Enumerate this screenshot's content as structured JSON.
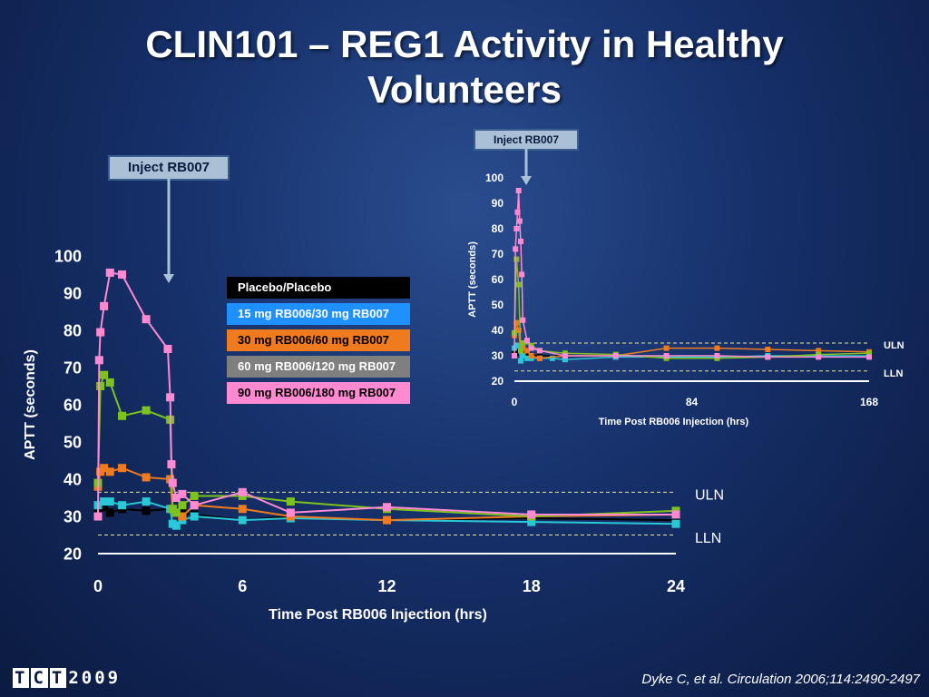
{
  "slide": {
    "title_line1": "CLIN101 – REG1 Activity in Healthy",
    "title_line2": "Volunteers",
    "citation": "Dyke C, et al. Circulation 2006;114:2490-2497",
    "logo_text": "TCT2009"
  },
  "colors": {
    "background": "#16306a",
    "placebo": "#000000",
    "dose15": "#1e90ff",
    "dose30": "#f07a1e",
    "dose60": "#7dc21e",
    "dose90": "#ff8ad2",
    "aptt_cyan": "#2ac7d6",
    "reference_line": "#e6e6a0"
  },
  "chart_data": [
    {
      "name": "main",
      "type": "line",
      "xlabel": "Time Post RB006 Injection (hrs)",
      "ylabel": "APTT (seconds)",
      "xlim": [
        0,
        24
      ],
      "ylim": [
        20,
        100
      ],
      "xticks": [
        "0",
        "6",
        "12",
        "18",
        "24"
      ],
      "yticks": [
        "20",
        "30",
        "40",
        "50",
        "60",
        "70",
        "80",
        "90",
        "100"
      ],
      "annotation": "Inject RB007",
      "inject_time": 3,
      "reference_lines": [
        {
          "label": "ULN",
          "y": 36.5
        },
        {
          "label": "LLN",
          "y": 25
        }
      ],
      "legend": [
        "Placebo/Placebo",
        "15 mg RB006/30 mg RB007",
        "30 mg RB006/60 mg RB007",
        "60 mg RB006/120 mg RB007",
        "90 mg RB006/180 mg RB007"
      ],
      "series": [
        {
          "name": "Placebo/Placebo",
          "color": "#000000",
          "x": [
            0,
            0.25,
            0.5,
            1,
            2,
            3,
            3.25,
            3.5,
            4,
            6,
            8,
            12,
            18,
            24
          ],
          "y": [
            32,
            32.5,
            31,
            32,
            31.5,
            32,
            31,
            31,
            30.5,
            29,
            30,
            29,
            29.5,
            29
          ]
        },
        {
          "name": "15 mg RB006/30 mg RB007",
          "color": "#2ac7d6",
          "x": [
            0,
            0.25,
            0.5,
            1,
            2,
            3,
            3.1,
            3.25,
            3.5,
            4,
            6,
            8,
            12,
            18,
            24
          ],
          "y": [
            33,
            34,
            34,
            33,
            34,
            32,
            28,
            27.5,
            29,
            30,
            29,
            29.5,
            29,
            28.5,
            28
          ]
        },
        {
          "name": "30 mg RB006/60 mg RB007",
          "color": "#f07a1e",
          "x": [
            0,
            0.1,
            0.25,
            0.5,
            1,
            2,
            3,
            3.1,
            3.25,
            3.5,
            4,
            6,
            8,
            12,
            18,
            24
          ],
          "y": [
            38,
            42,
            43,
            42,
            43,
            40.5,
            40,
            32,
            31,
            30,
            33,
            32,
            30,
            29,
            30,
            30.5
          ]
        },
        {
          "name": "60 mg RB006/120 mg RB007",
          "color": "#7dc21e",
          "x": [
            0,
            0.1,
            0.25,
            0.5,
            1,
            2,
            3,
            3.1,
            3.25,
            3.5,
            4,
            6,
            8,
            12,
            18,
            24
          ],
          "y": [
            39,
            65,
            68,
            66,
            57,
            58.5,
            56,
            32,
            31,
            33,
            35.5,
            35.5,
            34,
            32,
            30,
            31.5
          ]
        },
        {
          "name": "90 mg RB006/180 mg RB007",
          "color": "#ff8ad2",
          "x": [
            0,
            0.05,
            0.1,
            0.25,
            0.5,
            1,
            2,
            2.9,
            3,
            3.05,
            3.1,
            3.25,
            3.5,
            4,
            6,
            8,
            12,
            18,
            24
          ],
          "y": [
            30,
            72,
            79.5,
            86.5,
            95.5,
            95,
            83,
            75,
            62,
            44,
            39,
            35,
            36,
            33,
            36.5,
            31,
            32.5,
            30.5,
            30.5
          ]
        }
      ]
    },
    {
      "name": "inset",
      "type": "line",
      "xlabel": "Time Post RB006 Injection (hrs)",
      "ylabel": "APTT (seconds)",
      "xlim": [
        0,
        168
      ],
      "ylim": [
        20,
        100
      ],
      "xticks": [
        "0",
        "84",
        "168"
      ],
      "yticks": [
        "20",
        "30",
        "40",
        "50",
        "60",
        "70",
        "80",
        "90",
        "100"
      ],
      "annotation": "Inject RB007",
      "inject_time": 3,
      "reference_lines": [
        {
          "label": "ULN",
          "y": 35
        },
        {
          "label": "LLN",
          "y": 24
        }
      ],
      "series": [
        {
          "name": "Placebo/Placebo",
          "color": "#000000",
          "x": [
            0,
            1,
            2,
            3,
            4,
            6,
            8,
            12,
            24,
            48,
            72,
            96,
            120,
            144,
            168
          ],
          "y": [
            32,
            31,
            32,
            31,
            30,
            30,
            30,
            30,
            30,
            30,
            29,
            29.5,
            30,
            30,
            30
          ]
        },
        {
          "name": "15 mg RB006/30 mg RB007",
          "color": "#2ac7d6",
          "x": [
            0,
            1,
            2,
            3,
            4,
            6,
            8,
            12,
            18,
            24,
            48,
            72,
            96,
            120,
            144,
            168
          ],
          "y": [
            33,
            34,
            34,
            28,
            30,
            29,
            29,
            29,
            29,
            28.5,
            29.5,
            29.5,
            29.5,
            30,
            30,
            30
          ]
        },
        {
          "name": "30 mg RB006/60 mg RB007",
          "color": "#f07a1e",
          "x": [
            0,
            1,
            2,
            3,
            4,
            6,
            8,
            12,
            24,
            48,
            72,
            96,
            120,
            144,
            168
          ],
          "y": [
            38,
            43,
            40,
            32,
            33,
            32,
            30,
            29,
            30,
            30,
            33,
            33,
            32.5,
            32,
            31.5
          ]
        },
        {
          "name": "60 mg RB006/120 mg RB007",
          "color": "#7dc21e",
          "x": [
            0,
            1,
            2,
            3,
            4,
            6,
            8,
            12,
            24,
            48,
            72,
            96,
            120,
            144,
            168
          ],
          "y": [
            39,
            68,
            58,
            32,
            35,
            35.5,
            34,
            32,
            31,
            30.5,
            29,
            29,
            29.5,
            30.5,
            31
          ]
        },
        {
          "name": "90 mg RB006/180 mg RB007",
          "color": "#ff8ad2",
          "x": [
            0,
            0.5,
            1,
            1.5,
            2,
            2.5,
            3,
            3.5,
            4,
            6,
            8,
            12,
            24,
            48,
            72,
            96,
            120,
            144,
            168
          ],
          "y": [
            30,
            72,
            80,
            86.5,
            95,
            83,
            75,
            62,
            44,
            36,
            33,
            32,
            30,
            30,
            30,
            30,
            29.5,
            29.5,
            29.5
          ]
        }
      ]
    }
  ]
}
